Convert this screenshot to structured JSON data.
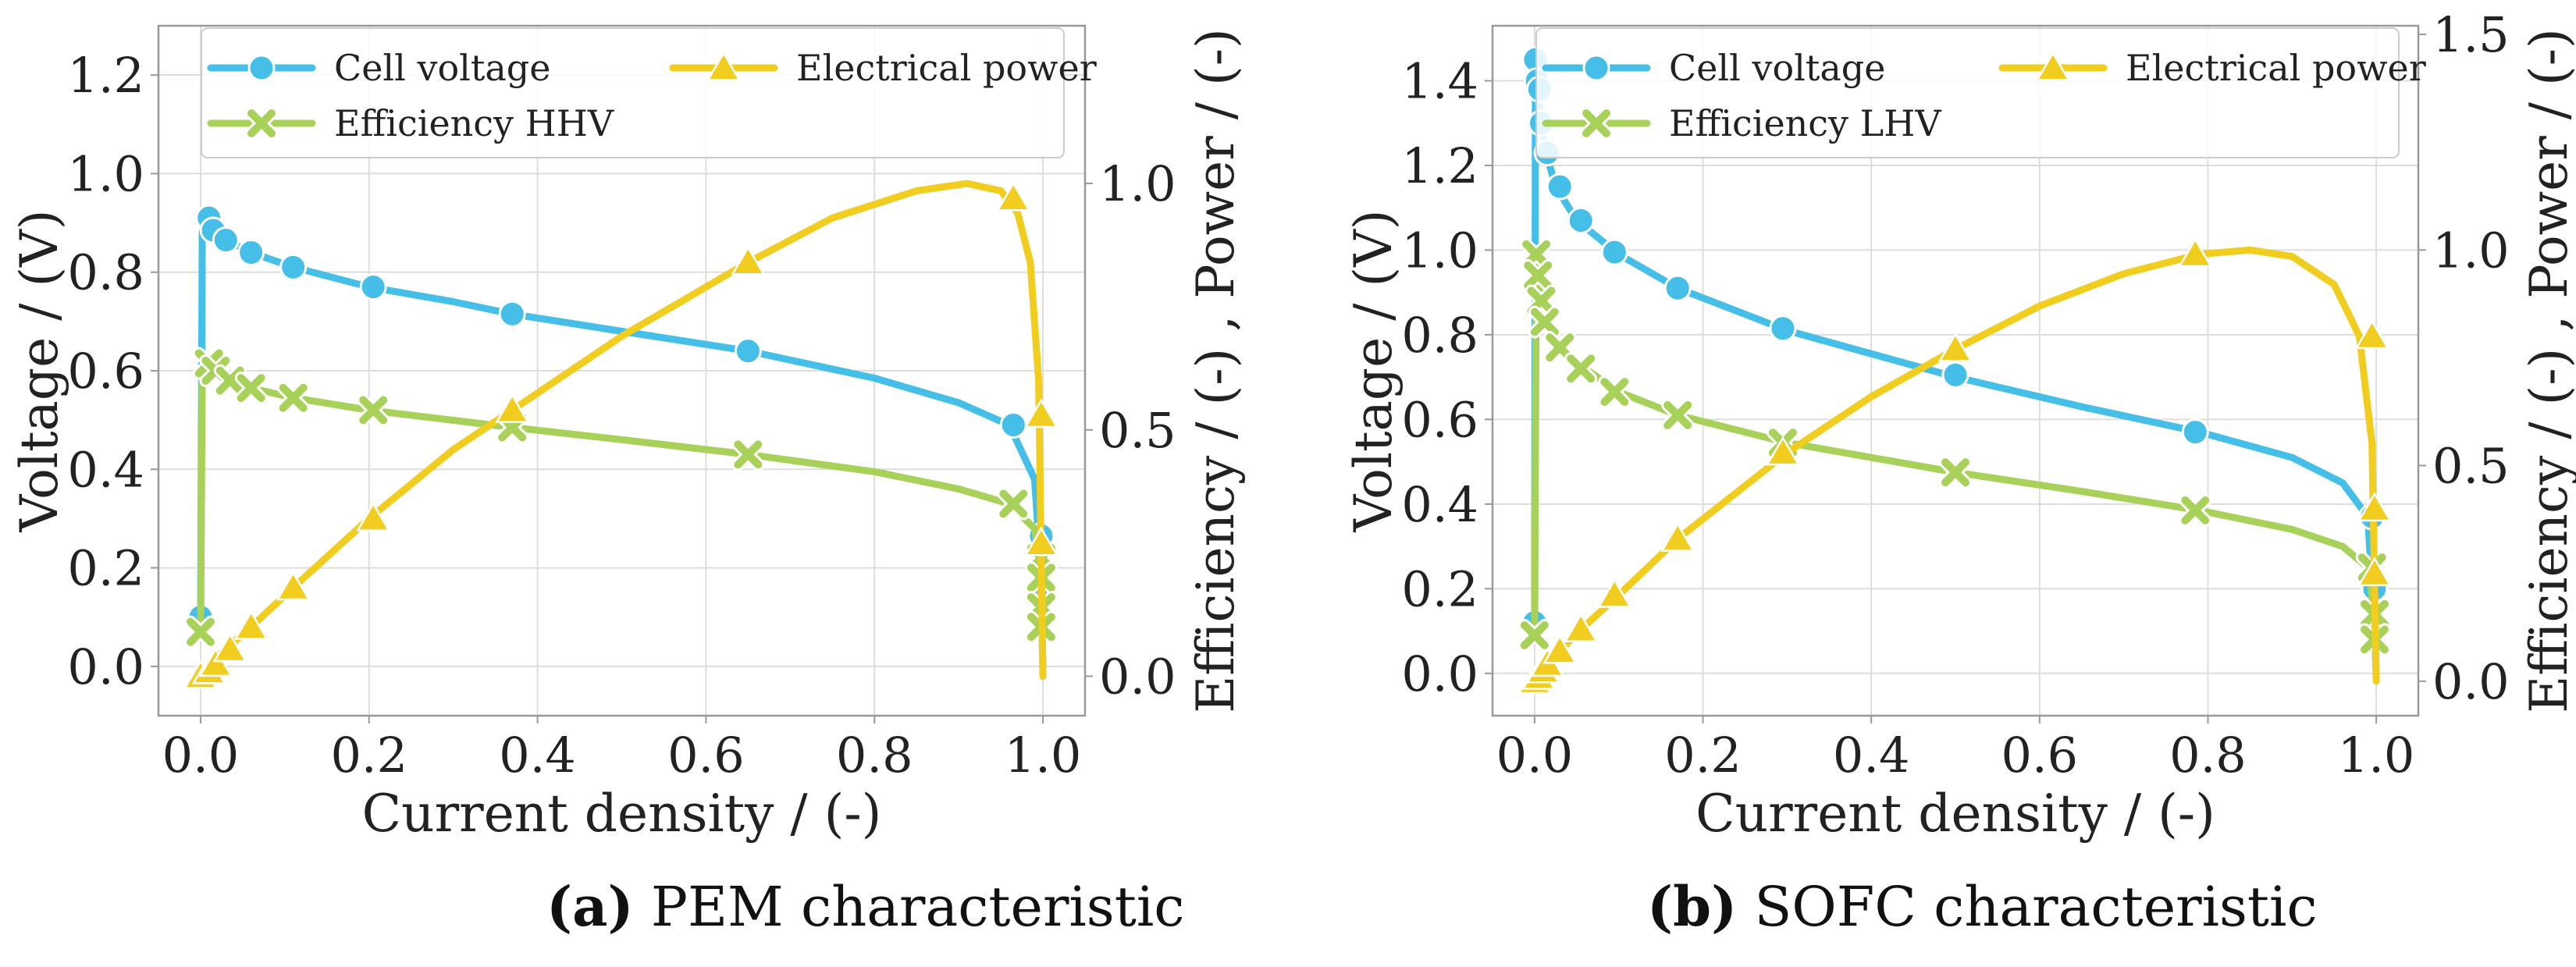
{
  "colors": {
    "voltage": "#45bfe8",
    "efficiency": "#a8d15a",
    "power": "#f0cd1f",
    "grid": "#dddddd",
    "frame": "#999999"
  },
  "captions": [
    {
      "letter": "(a)",
      "text": " PEM characteristic"
    },
    {
      "letter": "(b)",
      "text": " SOFC characteristic"
    }
  ],
  "chart_data": [
    {
      "type": "line",
      "title": "PEM characteristic",
      "xlabel": "Current density / (-)",
      "ylabel": "Voltage / (V)",
      "y2label": "Efficiency / (-) , Power / (-)",
      "xlim": [
        -0.05,
        1.05
      ],
      "ylim": [
        -0.1,
        1.3
      ],
      "y2lim": [
        -0.08,
        1.32
      ],
      "xticks": [
        "0.0",
        "0.2",
        "0.4",
        "0.6",
        "0.8",
        "1.0"
      ],
      "yticks": [
        "0.0",
        "0.2",
        "0.4",
        "0.6",
        "0.8",
        "1.0",
        "1.2"
      ],
      "y2ticks": [
        "0.0",
        "0.5",
        "1.0"
      ],
      "legend_position": "top",
      "series": [
        {
          "name": "Cell voltage",
          "axis": "left",
          "marker": "circle",
          "key": "voltage",
          "x": [
            0.0,
            0.002,
            0.006,
            0.012,
            0.03,
            0.06,
            0.11,
            0.2,
            0.3,
            0.37,
            0.5,
            0.65,
            0.8,
            0.9,
            0.96,
            0.99,
            0.995,
            0.998,
            1.0
          ],
          "y": [
            0.1,
            0.88,
            0.91,
            0.89,
            0.865,
            0.84,
            0.81,
            0.77,
            0.74,
            0.715,
            0.68,
            0.64,
            0.585,
            0.535,
            0.49,
            0.38,
            0.26,
            0.13,
            0.0
          ],
          "markers": [
            [
              0.0,
              0.1
            ],
            [
              0.01,
              0.91
            ],
            [
              0.015,
              0.885
            ],
            [
              0.03,
              0.865
            ],
            [
              0.06,
              0.84
            ],
            [
              0.11,
              0.81
            ],
            [
              0.205,
              0.77
            ],
            [
              0.37,
              0.715
            ],
            [
              0.65,
              0.64
            ],
            [
              0.965,
              0.49
            ],
            [
              0.998,
              0.265
            ],
            [
              0.998,
              0.135
            ]
          ]
        },
        {
          "name": "Efficiency HHV",
          "axis": "left",
          "marker": "x",
          "key": "efficiency",
          "x": [
            0.0,
            0.002,
            0.006,
            0.012,
            0.03,
            0.06,
            0.11,
            0.2,
            0.37,
            0.5,
            0.65,
            0.8,
            0.9,
            0.96,
            0.99,
            0.995,
            0.998,
            1.0
          ],
          "y": [
            0.07,
            0.6,
            0.615,
            0.6,
            0.58,
            0.565,
            0.545,
            0.52,
            0.485,
            0.46,
            0.43,
            0.395,
            0.36,
            0.33,
            0.28,
            0.22,
            0.12,
            0.0
          ],
          "markers": [
            [
              0.0,
              0.07
            ],
            [
              0.01,
              0.615
            ],
            [
              0.018,
              0.6
            ],
            [
              0.035,
              0.58
            ],
            [
              0.06,
              0.565
            ],
            [
              0.11,
              0.545
            ],
            [
              0.205,
              0.52
            ],
            [
              0.37,
              0.485
            ],
            [
              0.65,
              0.43
            ],
            [
              0.965,
              0.33
            ],
            [
              0.998,
              0.22
            ],
            [
              0.998,
              0.18
            ],
            [
              0.998,
              0.12
            ],
            [
              0.998,
              0.08
            ]
          ]
        },
        {
          "name": "Electrical power",
          "axis": "right",
          "marker": "triangle",
          "key": "power",
          "x": [
            0.0,
            0.01,
            0.03,
            0.06,
            0.11,
            0.2,
            0.3,
            0.37,
            0.5,
            0.65,
            0.75,
            0.85,
            0.91,
            0.95,
            0.97,
            0.985,
            0.995,
            1.0
          ],
          "y": [
            0.0,
            0.025,
            0.055,
            0.1,
            0.18,
            0.32,
            0.46,
            0.54,
            0.69,
            0.84,
            0.93,
            0.985,
            1.0,
            0.985,
            0.94,
            0.84,
            0.6,
            0.0
          ],
          "markers": [
            [
              0.0,
              0.0
            ],
            [
              0.01,
              0.01
            ],
            [
              0.018,
              0.025
            ],
            [
              0.035,
              0.055
            ],
            [
              0.06,
              0.1
            ],
            [
              0.11,
              0.18
            ],
            [
              0.205,
              0.32
            ],
            [
              0.37,
              0.54
            ],
            [
              0.65,
              0.84
            ],
            [
              0.965,
              0.97
            ],
            [
              0.998,
              0.53
            ],
            [
              0.998,
              0.27
            ]
          ]
        }
      ]
    },
    {
      "type": "line",
      "title": "SOFC characteristic",
      "xlabel": "Current density / (-)",
      "ylabel": "Voltage / (V)",
      "y2label": "Efficiency / (-) , Power / (-)",
      "xlim": [
        -0.05,
        1.05
      ],
      "ylim": [
        -0.1,
        1.53
      ],
      "y2lim": [
        -0.08,
        1.52
      ],
      "xticks": [
        "0.0",
        "0.2",
        "0.4",
        "0.6",
        "0.8",
        "1.0"
      ],
      "yticks": [
        "0.0",
        "0.2",
        "0.4",
        "0.6",
        "0.8",
        "1.0",
        "1.2",
        "1.4"
      ],
      "y2ticks": [
        "0.0",
        "0.5",
        "1.0",
        "1.5"
      ],
      "legend_position": "top",
      "series": [
        {
          "name": "Cell voltage",
          "axis": "left",
          "marker": "circle",
          "key": "voltage",
          "x": [
            0.0,
            0.001,
            0.003,
            0.006,
            0.01,
            0.015,
            0.025,
            0.05,
            0.1,
            0.17,
            0.3,
            0.5,
            0.65,
            0.79,
            0.9,
            0.96,
            0.99,
            0.995,
            0.998,
            1.0
          ],
          "y": [
            0.12,
            1.45,
            1.4,
            1.35,
            1.28,
            1.22,
            1.15,
            1.07,
            0.99,
            0.91,
            0.81,
            0.7,
            0.63,
            0.57,
            0.51,
            0.45,
            0.37,
            0.2,
            0.1,
            0.0
          ],
          "markers": [
            [
              0.0,
              0.12
            ],
            [
              0.001,
              1.45
            ],
            [
              0.003,
              1.4
            ],
            [
              0.006,
              1.38
            ],
            [
              0.008,
              1.3
            ],
            [
              0.015,
              1.23
            ],
            [
              0.03,
              1.15
            ],
            [
              0.055,
              1.07
            ],
            [
              0.095,
              0.995
            ],
            [
              0.17,
              0.91
            ],
            [
              0.295,
              0.815
            ],
            [
              0.5,
              0.705
            ],
            [
              0.785,
              0.57
            ],
            [
              0.995,
              0.37
            ],
            [
              0.998,
              0.2
            ],
            [
              0.998,
              0.1
            ]
          ]
        },
        {
          "name": "Efficiency LHV",
          "axis": "left",
          "marker": "x",
          "key": "efficiency",
          "x": [
            0.0,
            0.002,
            0.006,
            0.012,
            0.03,
            0.06,
            0.1,
            0.17,
            0.3,
            0.5,
            0.65,
            0.79,
            0.9,
            0.96,
            0.99,
            0.995,
            0.998,
            1.0
          ],
          "y": [
            0.09,
            0.98,
            0.92,
            0.85,
            0.77,
            0.72,
            0.665,
            0.61,
            0.545,
            0.475,
            0.43,
            0.385,
            0.34,
            0.3,
            0.25,
            0.18,
            0.1,
            0.0
          ],
          "markers": [
            [
              0.0,
              0.09
            ],
            [
              0.002,
              0.99
            ],
            [
              0.004,
              0.94
            ],
            [
              0.008,
              0.88
            ],
            [
              0.012,
              0.83
            ],
            [
              0.03,
              0.77
            ],
            [
              0.055,
              0.72
            ],
            [
              0.095,
              0.665
            ],
            [
              0.17,
              0.61
            ],
            [
              0.295,
              0.545
            ],
            [
              0.5,
              0.475
            ],
            [
              0.785,
              0.385
            ],
            [
              0.995,
              0.25
            ],
            [
              0.998,
              0.14
            ],
            [
              0.998,
              0.08
            ]
          ]
        },
        {
          "name": "Electrical power",
          "axis": "right",
          "marker": "triangle",
          "key": "power",
          "x": [
            0.0,
            0.01,
            0.03,
            0.055,
            0.1,
            0.17,
            0.3,
            0.4,
            0.5,
            0.6,
            0.7,
            0.79,
            0.85,
            0.9,
            0.95,
            0.98,
            0.995,
            1.0
          ],
          "y": [
            0.0,
            0.03,
            0.07,
            0.12,
            0.2,
            0.33,
            0.53,
            0.66,
            0.77,
            0.87,
            0.945,
            0.99,
            1.0,
            0.985,
            0.92,
            0.8,
            0.55,
            0.0
          ],
          "markers": [
            [
              0.0,
              0.0
            ],
            [
              0.005,
              0.01
            ],
            [
              0.01,
              0.025
            ],
            [
              0.015,
              0.04
            ],
            [
              0.03,
              0.07
            ],
            [
              0.055,
              0.12
            ],
            [
              0.095,
              0.2
            ],
            [
              0.17,
              0.33
            ],
            [
              0.295,
              0.53
            ],
            [
              0.5,
              0.77
            ],
            [
              0.785,
              0.99
            ],
            [
              0.995,
              0.8
            ],
            [
              0.998,
              0.4
            ],
            [
              0.998,
              0.25
            ]
          ]
        }
      ]
    }
  ]
}
